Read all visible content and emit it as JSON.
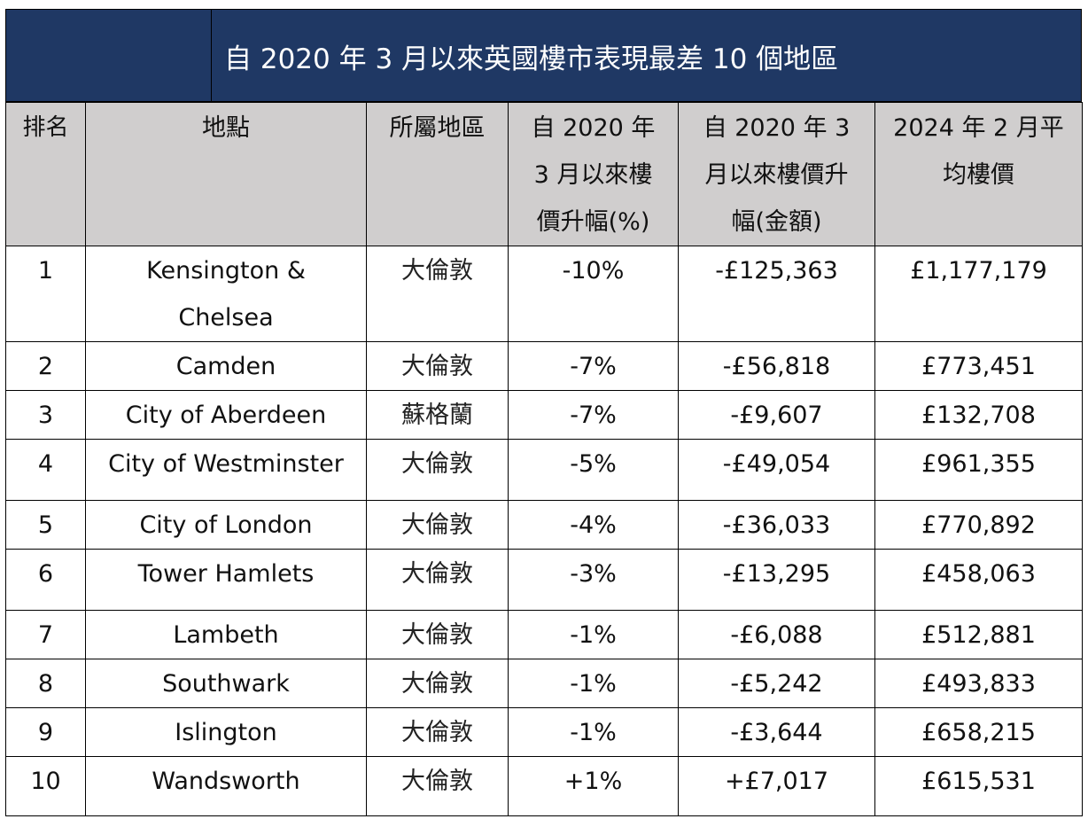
{
  "title": "自 2020 年 3 月以來英國樓市表現最差 10 個地區",
  "colors": {
    "title_bg": "#1f3864",
    "title_fg": "#ffffff",
    "header_bg": "#d0cece"
  },
  "headers": {
    "rank": "排名",
    "location": "地點",
    "region": "所屬地區",
    "pct_change": [
      "自 2020 年",
      "3 月以來樓",
      "價升幅(%)"
    ],
    "amt_change": [
      "自 2020 年 3",
      "月以來樓價升",
      "幅(金額)"
    ],
    "avg_price": [
      "2024 年 2 月平",
      "均樓價"
    ]
  },
  "rows": [
    {
      "rank": "1",
      "location": [
        "Kensington &",
        "Chelsea"
      ],
      "region": "大倫敦",
      "pct": "-10%",
      "amount": "-£125,363",
      "price": "£1,177,179"
    },
    {
      "rank": "2",
      "location": [
        "Camden"
      ],
      "region": "大倫敦",
      "pct": "-7%",
      "amount": "-£56,818",
      "price": "£773,451"
    },
    {
      "rank": "3",
      "location": [
        "City of Aberdeen"
      ],
      "region": "蘇格蘭",
      "pct": "-7%",
      "amount": "-£9,607",
      "price": "£132,708"
    },
    {
      "rank": "4",
      "location": [
        "City of Westminster"
      ],
      "region": "大倫敦",
      "pct": "-5%",
      "amount": "-£49,054",
      "price": "£961,355"
    },
    {
      "rank": "5",
      "location": [
        "City of London"
      ],
      "region": "大倫敦",
      "pct": "-4%",
      "amount": "-£36,033",
      "price": "£770,892"
    },
    {
      "rank": "6",
      "location": [
        "Tower Hamlets"
      ],
      "region": "大倫敦",
      "pct": "-3%",
      "amount": "-£13,295",
      "price": "£458,063"
    },
    {
      "rank": "7",
      "location": [
        "Lambeth"
      ],
      "region": "大倫敦",
      "pct": "-1%",
      "amount": "-£6,088",
      "price": "£512,881"
    },
    {
      "rank": "8",
      "location": [
        "Southwark"
      ],
      "region": "大倫敦",
      "pct": "-1%",
      "amount": "-£5,242",
      "price": "£493,833"
    },
    {
      "rank": "9",
      "location": [
        "Islington"
      ],
      "region": "大倫敦",
      "pct": "-1%",
      "amount": "-£3,644",
      "price": "£658,215"
    },
    {
      "rank": "10",
      "location": [
        "Wandsworth"
      ],
      "region": "大倫敦",
      "pct": "+1%",
      "amount": "+£7,017",
      "price": "£615,531"
    }
  ]
}
